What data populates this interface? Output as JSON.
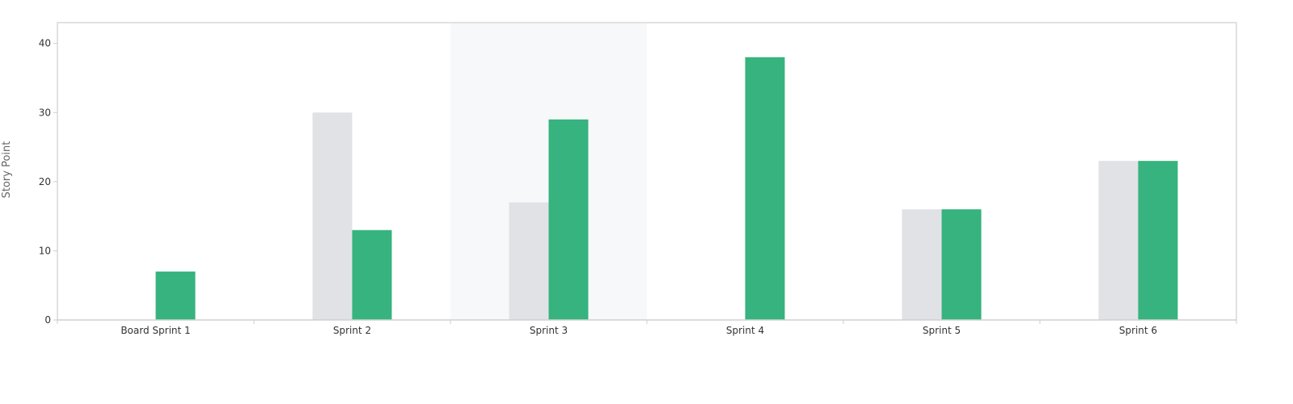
{
  "chart_data": {
    "type": "bar",
    "ylabel": "Story Point",
    "xlabel": "",
    "ylim": [
      0,
      43
    ],
    "yticks": [
      0,
      10,
      20,
      30,
      40
    ],
    "categories": [
      "Board Sprint 1",
      "Sprint 2",
      "Sprint 3",
      "Sprint 4",
      "Sprint 5",
      "Sprint 6"
    ],
    "highlighted_category": "Sprint 3",
    "grid": false,
    "legend": "none",
    "series": [
      {
        "values": [
          0,
          30,
          17,
          0,
          16,
          23
        ],
        "color": "#e1e2e6"
      },
      {
        "values": [
          7,
          13,
          29,
          38,
          16,
          23
        ],
        "color": "#36b37e"
      }
    ],
    "colors": {
      "axis": "#cccccc",
      "frame": "#d9d9d9",
      "highlight_band": "#f6f8f9"
    }
  }
}
